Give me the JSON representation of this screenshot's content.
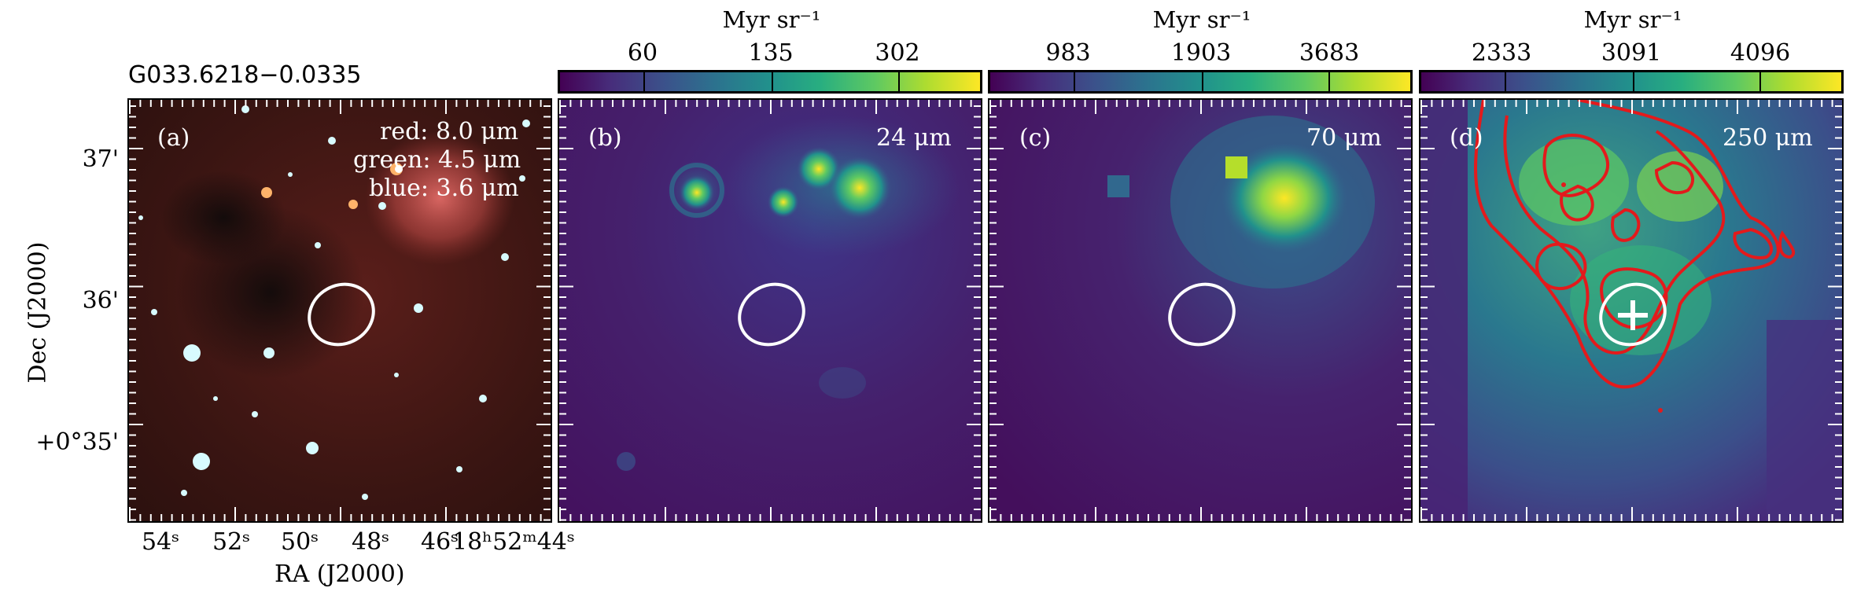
{
  "figure": {
    "source_name": "G033.6218−0.0335",
    "axes": {
      "xlabel": "RA (J2000)",
      "ylabel": "Dec (J2000)",
      "ra_ticks": [
        "54ˢ",
        "52ˢ",
        "50ˢ",
        "48ˢ",
        "46ˢ",
        "18ʰ52ᵐ44ˢ"
      ],
      "dec_ticks": [
        "37'",
        "36'",
        "+0°35'"
      ]
    },
    "panels": [
      {
        "id": "a",
        "label": "(a)",
        "legend": [
          "red: 8.0 μm",
          "green: 4.5 μm",
          "blue: 3.6 μm"
        ]
      },
      {
        "id": "b",
        "label": "(b)",
        "band": "24 μm",
        "colorbar": {
          "unit": "Myr sr⁻¹",
          "ticks": [
            "60",
            "135",
            "302"
          ]
        }
      },
      {
        "id": "c",
        "label": "(c)",
        "band": "70 μm",
        "colorbar": {
          "unit": "Myr sr⁻¹",
          "ticks": [
            "983",
            "1903",
            "3683"
          ]
        }
      },
      {
        "id": "d",
        "label": "(d)",
        "band": "250 μm",
        "colorbar": {
          "unit": "Myr sr⁻¹",
          "ticks": [
            "2333",
            "3091",
            "4096"
          ]
        }
      }
    ],
    "colors": {
      "viridis_low": "#440154",
      "viridis_mid": "#21918c",
      "viridis_high": "#fde725",
      "contour": "#e31a1c",
      "ellipse": "#ffffff"
    }
  }
}
